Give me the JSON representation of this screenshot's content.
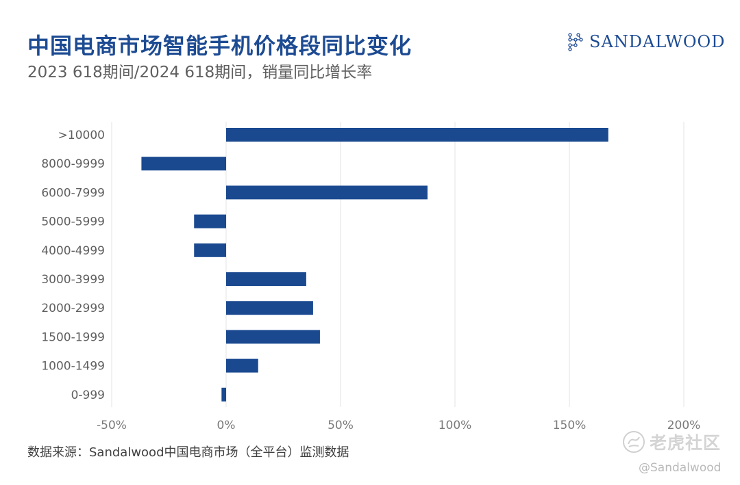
{
  "header": {
    "title": "中国电商市场智能手机价格段同比变化",
    "subtitle": "2023 618期间/2024 618期间，销量同比增长率"
  },
  "logo": {
    "text": "SANDALWOOD",
    "icon": "constellation-logo-icon"
  },
  "footer": {
    "source": "数据来源：Sandalwood中国电商市场（全平台）监测数据"
  },
  "watermark": {
    "brand": "老虎社区",
    "handle": "@Sandalwood",
    "icon": "tiger-community-icon"
  },
  "colors": {
    "title": "#1d4b93",
    "bar": "#1a4990",
    "grid": "#e3e3e3",
    "axis_text": "#7a7a7a",
    "category_text": "#5f5f5f"
  },
  "chart_data": {
    "type": "bar",
    "orientation": "horizontal",
    "categories": [
      ">10000",
      "8000-9999",
      "6000-7999",
      "5000-5999",
      "4000-4999",
      "3000-3999",
      "2000-2999",
      "1500-1999",
      "1000-1499",
      "0-999"
    ],
    "values": [
      167,
      -37,
      88,
      -14,
      -14,
      35,
      38,
      41,
      14,
      -2
    ],
    "unit": "%",
    "xlim": [
      -50,
      200
    ],
    "xticks": [
      -50,
      0,
      50,
      100,
      150,
      200
    ],
    "xtick_labels": [
      "-50%",
      "0%",
      "50%",
      "100%",
      "150%",
      "200%"
    ],
    "grid": true,
    "legend": "none"
  }
}
